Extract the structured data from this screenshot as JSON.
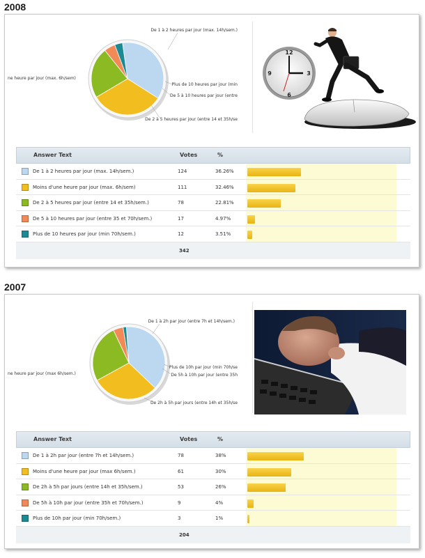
{
  "chart_data": [
    {
      "type": "pie",
      "year": "2008",
      "categories": [
        "De 1 à 2 heures par jour (max. 14h/sem.)",
        "Moins d'une heure par jour (max. 6h/sem)",
        "De 2 à 5 heures par jour (entre 14 et 35h/sem.)",
        "De 5 à 10 heures par jour (entre 35 et 70h/sem.)",
        "Plus de 10 heures par jour (min 70h/sem.)"
      ],
      "pie_labels": [
        "De 1 à 2 heures par jour (max. 14h/sem.)",
        "ne heure par jour (max. 6h/sem)",
        "De 2 à 5 heures par jour (entre 14 et 35h/se",
        "De 5 à 10 heures par jour (entre",
        "Plus de 10 heures par jour (min"
      ],
      "values": [
        124,
        111,
        78,
        17,
        12
      ],
      "percents": [
        "36.26%",
        "32.46%",
        "22.81%",
        "4.97%",
        "3.51%"
      ],
      "total": "342",
      "colors": [
        "#bcd7f0",
        "#f2be1f",
        "#8cba23",
        "#f28a58",
        "#1c8a92"
      ],
      "table_headers": {
        "answer": "Answer Text",
        "votes": "Votes",
        "pct": "%"
      }
    },
    {
      "type": "pie",
      "year": "2007",
      "categories": [
        "De 1 à 2h par jour (entre 7h et 14h/sem.)",
        "Moins d'une heure par jour (max 6h/sem.)",
        "De 2h à 5h par jours (entre 14h et 35h/sem.)",
        "De 5h à 10h par jour (entre 35h et 70h/sem.)",
        "Plus de 10h par jour (min 70h/sem.)"
      ],
      "pie_labels": [
        "De 1 à 2h par jour (entre 7h et 14h/sem.)",
        "ne heure par jour (max 6h/sem.)",
        "De 2h à 5h par jours (entre 14h et 35h/se",
        "De 5h à 10h par jour (entre 35h",
        "Plus de 10h par jour (min 70h/se"
      ],
      "values": [
        78,
        61,
        53,
        9,
        3
      ],
      "percents": [
        "38%",
        "30%",
        "26%",
        "4%",
        "1%"
      ],
      "total": "204",
      "colors": [
        "#bcd7f0",
        "#f2be1f",
        "#8cba23",
        "#f28a58",
        "#1c8a92"
      ],
      "table_headers": {
        "answer": "Answer Text",
        "votes": "Votes",
        "pct": "%"
      }
    }
  ],
  "photos": {
    "p2008": "businessman-clock-mouse-photo",
    "p2007": "man-asleep-on-keyboard-photo"
  }
}
